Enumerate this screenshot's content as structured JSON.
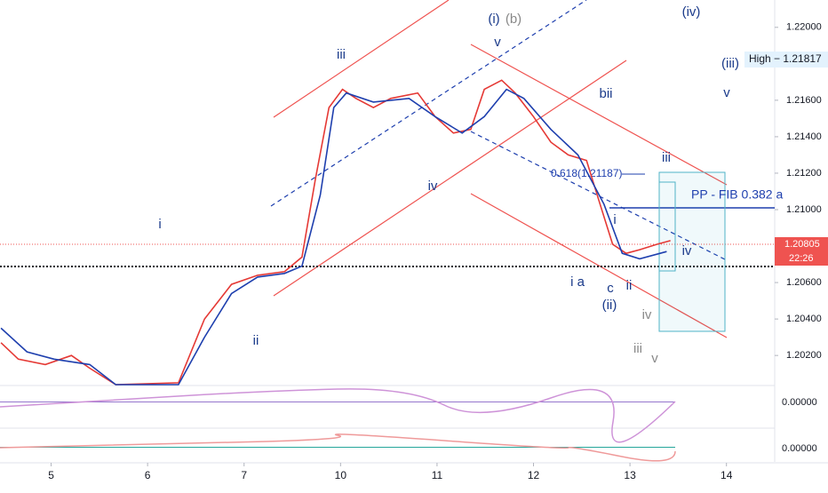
{
  "chart_data": {
    "type": "line",
    "xlim": [
      -0.53,
      7.5
    ],
    "xticks": [
      {
        "value": 0,
        "label": "5"
      },
      {
        "value": 1,
        "label": "6"
      },
      {
        "value": 2,
        "label": "7"
      },
      {
        "value": 3,
        "label": "10"
      },
      {
        "value": 4,
        "label": "11"
      },
      {
        "value": 5,
        "label": "12"
      },
      {
        "value": 6,
        "label": "13"
      },
      {
        "value": 7,
        "label": "14"
      }
    ],
    "ylim": [
      1.2004,
      1.2215
    ],
    "yticks": [
      {
        "value": 1.22,
        "label": "1.22000"
      },
      {
        "value": 1.216,
        "label": "1.21600"
      },
      {
        "value": 1.214,
        "label": "1.21400"
      },
      {
        "value": 1.212,
        "label": "1.21200"
      },
      {
        "value": 1.21,
        "label": "1.21000"
      },
      {
        "value": 1.206,
        "label": "1.20600"
      },
      {
        "value": 1.204,
        "label": "1.20400"
      },
      {
        "value": 1.202,
        "label": "1.20200"
      }
    ],
    "series": [
      {
        "color": "#e53935",
        "x": [
          -0.52,
          -0.34,
          -0.06,
          0.21,
          0.4,
          0.67,
          1.32,
          1.59,
          1.87,
          2.14,
          2.42,
          2.6,
          2.74,
          2.88,
          3.02,
          3.16,
          3.34,
          3.52,
          3.8,
          3.98,
          4.17,
          4.35,
          4.49,
          4.67,
          4.81,
          5.0,
          5.18,
          5.36,
          5.55,
          5.69,
          5.82,
          5.96,
          6.1,
          6.28,
          6.42
        ],
        "values": [
          1.2027,
          1.2018,
          1.2015,
          1.202,
          1.2013,
          1.2004,
          1.2005,
          1.204,
          1.2059,
          1.2064,
          1.2066,
          1.2074,
          1.2117,
          1.2156,
          1.2166,
          1.2161,
          1.2156,
          1.2161,
          1.2164,
          1.2151,
          1.2142,
          1.2144,
          1.2166,
          1.2171,
          1.2164,
          1.2151,
          1.2137,
          1.213,
          1.2127,
          1.2103,
          1.2081,
          1.2076,
          1.2078,
          1.2081,
          1.2083
        ]
      },
      {
        "color": "#1e3fae",
        "x": [
          -0.52,
          -0.25,
          0.03,
          0.4,
          0.67,
          1.32,
          1.59,
          1.87,
          2.14,
          2.42,
          2.6,
          2.79,
          2.93,
          3.06,
          3.34,
          3.71,
          3.98,
          4.26,
          4.49,
          4.72,
          4.9,
          5.18,
          5.46,
          5.73,
          5.92,
          6.1,
          6.38
        ],
        "values": [
          1.2035,
          1.2022,
          1.2018,
          1.2015,
          1.2004,
          1.2004,
          1.203,
          1.2054,
          1.2063,
          1.2065,
          1.2069,
          1.2108,
          1.2156,
          1.2164,
          1.2159,
          1.2161,
          1.2151,
          1.2142,
          1.2151,
          1.2166,
          1.2161,
          1.2144,
          1.213,
          1.2103,
          1.2076,
          1.2073,
          1.2077
        ]
      }
    ],
    "price_label": "1.20805",
    "countdown": "22:26",
    "high_label": "High − 1.21817",
    "pp_label": "PP - FIB 0.382 a",
    "fib_label": "0.618(1.21187)",
    "osc_zero": [
      "0.00000",
      "0.00000"
    ],
    "annotations": [
      "(i)",
      "(b)",
      "v",
      "iii",
      "iv",
      "i",
      "ii",
      "bii",
      "iii",
      "i",
      "ii",
      "iv",
      "iii",
      "v",
      "(iv)",
      "(iii)",
      "v",
      "c",
      "(ii)",
      "i a",
      "iv"
    ]
  }
}
